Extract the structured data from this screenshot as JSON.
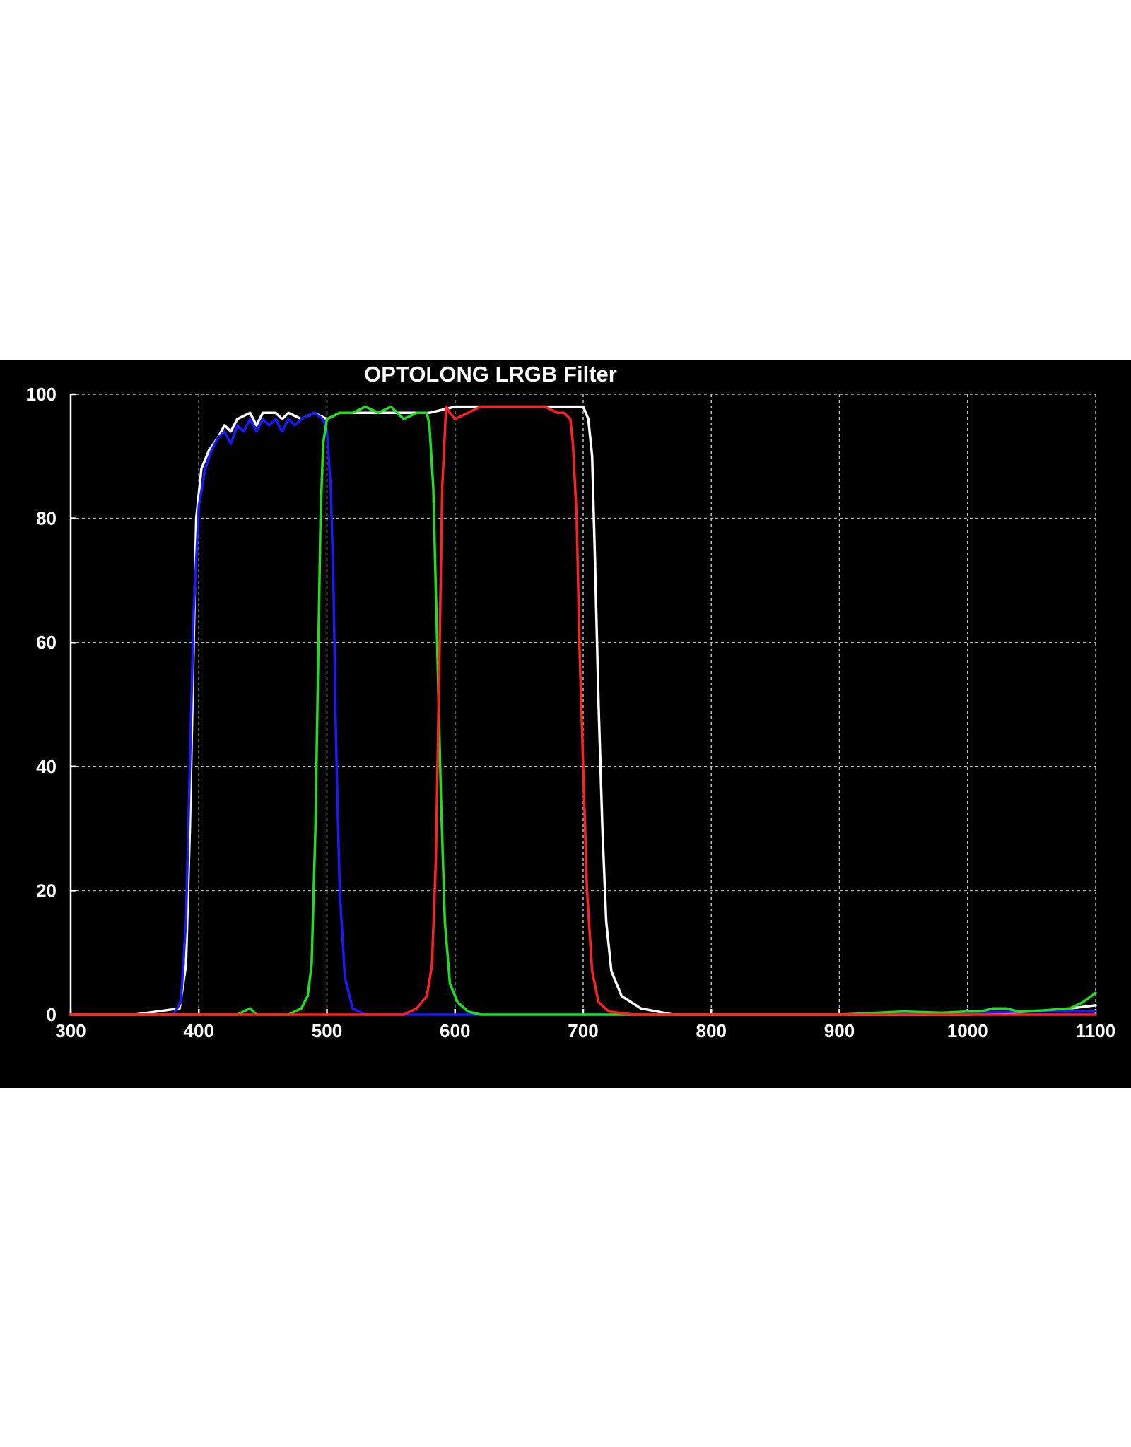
{
  "chart_data": {
    "type": "line",
    "title": "OPTOLONG LRGB Filter",
    "xlabel": "",
    "ylabel": "",
    "xlim": [
      300,
      1100
    ],
    "ylim": [
      0,
      100
    ],
    "x_ticks": [
      300,
      400,
      500,
      600,
      700,
      800,
      900,
      1000,
      1100
    ],
    "y_ticks": [
      0,
      20,
      40,
      60,
      80,
      100
    ],
    "grid": true,
    "background": "#000000",
    "series": [
      {
        "color": "#ffffff",
        "points": [
          [
            300,
            0
          ],
          [
            350,
            0
          ],
          [
            385,
            1
          ],
          [
            390,
            8
          ],
          [
            393,
            30
          ],
          [
            396,
            60
          ],
          [
            398,
            80
          ],
          [
            402,
            88
          ],
          [
            408,
            91
          ],
          [
            415,
            93
          ],
          [
            420,
            95
          ],
          [
            425,
            94
          ],
          [
            430,
            96
          ],
          [
            440,
            97
          ],
          [
            445,
            95
          ],
          [
            450,
            97
          ],
          [
            460,
            97
          ],
          [
            465,
            96
          ],
          [
            470,
            97
          ],
          [
            480,
            96
          ],
          [
            490,
            97
          ],
          [
            500,
            96
          ],
          [
            510,
            97
          ],
          [
            530,
            97
          ],
          [
            560,
            97
          ],
          [
            580,
            97
          ],
          [
            600,
            98
          ],
          [
            650,
            98
          ],
          [
            680,
            98
          ],
          [
            700,
            98
          ],
          [
            704,
            96
          ],
          [
            707,
            90
          ],
          [
            709,
            75
          ],
          [
            712,
            50
          ],
          [
            715,
            30
          ],
          [
            718,
            15
          ],
          [
            722,
            7
          ],
          [
            730,
            3
          ],
          [
            745,
            1
          ],
          [
            770,
            0
          ],
          [
            900,
            0
          ],
          [
            1000,
            0
          ],
          [
            1050,
            0.5
          ],
          [
            1080,
            1
          ],
          [
            1100,
            1.5
          ]
        ]
      },
      {
        "color": "#1a1aff",
        "points": [
          [
            300,
            0
          ],
          [
            380,
            0
          ],
          [
            386,
            2
          ],
          [
            390,
            15
          ],
          [
            393,
            40
          ],
          [
            396,
            65
          ],
          [
            400,
            82
          ],
          [
            405,
            88
          ],
          [
            410,
            91
          ],
          [
            415,
            93
          ],
          [
            420,
            94
          ],
          [
            425,
            92
          ],
          [
            430,
            95
          ],
          [
            435,
            94
          ],
          [
            440,
            96
          ],
          [
            445,
            94
          ],
          [
            450,
            96
          ],
          [
            455,
            95
          ],
          [
            460,
            96
          ],
          [
            465,
            94
          ],
          [
            470,
            96
          ],
          [
            475,
            95
          ],
          [
            480,
            96
          ],
          [
            490,
            97
          ],
          [
            497,
            96
          ],
          [
            500,
            94
          ],
          [
            503,
            85
          ],
          [
            505,
            70
          ],
          [
            507,
            45
          ],
          [
            510,
            20
          ],
          [
            514,
            6
          ],
          [
            520,
            1
          ],
          [
            530,
            0
          ],
          [
            900,
            0
          ],
          [
            1050,
            0.5
          ],
          [
            1100,
            0.5
          ]
        ]
      },
      {
        "color": "#22dd22",
        "points": [
          [
            300,
            0
          ],
          [
            430,
            0
          ],
          [
            440,
            1
          ],
          [
            445,
            0
          ],
          [
            470,
            0
          ],
          [
            480,
            1
          ],
          [
            485,
            3
          ],
          [
            488,
            8
          ],
          [
            491,
            30
          ],
          [
            493,
            55
          ],
          [
            495,
            80
          ],
          [
            497,
            92
          ],
          [
            500,
            96
          ],
          [
            510,
            97
          ],
          [
            520,
            97
          ],
          [
            530,
            98
          ],
          [
            540,
            97
          ],
          [
            550,
            98
          ],
          [
            560,
            96
          ],
          [
            570,
            97
          ],
          [
            578,
            97
          ],
          [
            580,
            95
          ],
          [
            583,
            85
          ],
          [
            586,
            60
          ],
          [
            589,
            35
          ],
          [
            592,
            15
          ],
          [
            596,
            5
          ],
          [
            602,
            2
          ],
          [
            610,
            0.5
          ],
          [
            620,
            0
          ],
          [
            900,
            0
          ],
          [
            950,
            0.5
          ],
          [
            980,
            0.3
          ],
          [
            1000,
            0.5
          ],
          [
            1010,
            0.5
          ],
          [
            1020,
            1
          ],
          [
            1030,
            1
          ],
          [
            1040,
            0.5
          ],
          [
            1060,
            0.7
          ],
          [
            1080,
            1
          ],
          [
            1090,
            2
          ],
          [
            1100,
            3.5
          ]
        ]
      },
      {
        "color": "#ff2222",
        "points": [
          [
            300,
            0
          ],
          [
            560,
            0
          ],
          [
            570,
            1
          ],
          [
            578,
            3
          ],
          [
            582,
            8
          ],
          [
            585,
            25
          ],
          [
            588,
            60
          ],
          [
            590,
            85
          ],
          [
            593,
            98
          ],
          [
            596,
            97
          ],
          [
            600,
            96
          ],
          [
            610,
            97
          ],
          [
            620,
            98
          ],
          [
            650,
            98
          ],
          [
            670,
            98
          ],
          [
            680,
            97
          ],
          [
            685,
            97
          ],
          [
            690,
            96
          ],
          [
            692,
            92
          ],
          [
            695,
            80
          ],
          [
            697,
            60
          ],
          [
            700,
            40
          ],
          [
            703,
            20
          ],
          [
            707,
            7
          ],
          [
            712,
            2
          ],
          [
            720,
            0.5
          ],
          [
            740,
            0
          ],
          [
            900,
            0
          ],
          [
            1100,
            0
          ]
        ]
      }
    ]
  }
}
